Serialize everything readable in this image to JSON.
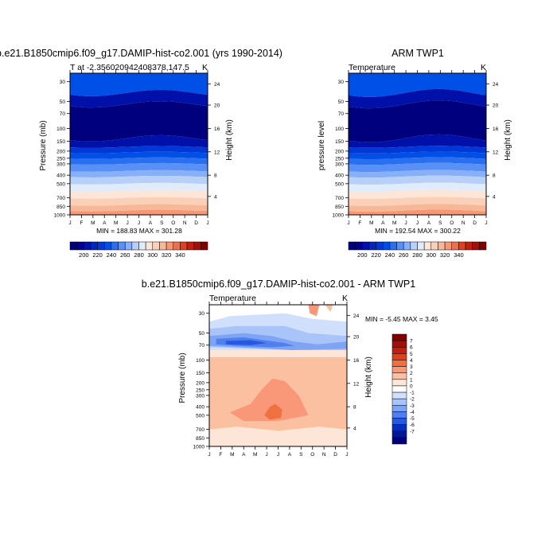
{
  "panels": [
    {
      "title": "b.e21.B1850cmip6.f09_g17.DAMIP-hist-co2.001 (yrs 1990-2014)",
      "left_label": "T at -2.356020942408378,147.5",
      "right_label": "K",
      "ylabel_left": "Pressure (mb)",
      "ylabel_right": "Height (km)",
      "stats": "MIN = 188.83 MAX = 301.28"
    },
    {
      "title": "ARM TWP1",
      "left_label": "Temperature",
      "right_label": "K",
      "ylabel_left": "pressure level",
      "ylabel_right": "Height (km)",
      "stats": "MIN = 192.54 MAX = 300.22"
    },
    {
      "title": "b.e21.B1850cmip6.f09_g17.DAMIP-hist-co2.001 - ARM TWP1",
      "left_label": "Temperature",
      "right_label": "K",
      "ylabel_left": "Pressure (mb)",
      "ylabel_right": "Height (km)",
      "stats": "MIN =  -5.45 MAX =   3.45"
    }
  ],
  "chart_data": [
    {
      "type": "heatmap",
      "title": "b.e21.B1850cmip6.f09_g17.DAMIP-hist-co2.001 (yrs 1990-2014)",
      "x_ticks": [
        "J",
        "F",
        "M",
        "A",
        "M",
        "J",
        "J",
        "A",
        "S",
        "O",
        "N",
        "D",
        "J"
      ],
      "y_ticks_pressure": [
        "30",
        "50",
        "70",
        "100",
        "150",
        "200",
        "250",
        "300",
        "400",
        "500",
        "700",
        "850",
        "1000"
      ],
      "y_ticks_height": [
        "24",
        "20",
        "16",
        "12",
        "8",
        "4"
      ],
      "colorbar_labels": [
        "200",
        "220",
        "240",
        "260",
        "280",
        "300",
        "320",
        "340"
      ],
      "min": 188.83,
      "max": 301.28
    },
    {
      "type": "heatmap",
      "title": "ARM TWP1",
      "x_ticks": [
        "J",
        "F",
        "M",
        "A",
        "M",
        "J",
        "J",
        "A",
        "S",
        "O",
        "N",
        "D",
        "J"
      ],
      "y_ticks_pressure": [
        "30",
        "50",
        "70",
        "100",
        "150",
        "200",
        "250",
        "300",
        "400",
        "500",
        "700",
        "850",
        "1000"
      ],
      "y_ticks_height": [
        "24",
        "20",
        "16",
        "12",
        "8",
        "4"
      ],
      "colorbar_labels": [
        "200",
        "220",
        "240",
        "260",
        "280",
        "300",
        "320",
        "340"
      ],
      "min": 192.54,
      "max": 300.22
    },
    {
      "type": "heatmap",
      "title": "b.e21.B1850cmip6.f09_g17.DAMIP-hist-co2.001 - ARM TWP1",
      "x_ticks": [
        "J",
        "F",
        "M",
        "A",
        "M",
        "J",
        "J",
        "A",
        "S",
        "O",
        "N",
        "D",
        "J"
      ],
      "y_ticks_pressure": [
        "30",
        "50",
        "70",
        "100",
        "150",
        "200",
        "250",
        "300",
        "400",
        "500",
        "700",
        "850",
        "1000"
      ],
      "y_ticks_height": [
        "24",
        "20",
        "16",
        "12",
        "8",
        "4"
      ],
      "colorbar_labels": [
        "7",
        "6",
        "5",
        "4",
        "3",
        "2",
        "1",
        "0",
        "-1",
        "-2",
        "-3",
        "-4",
        "-5",
        "-6",
        "-7"
      ],
      "min": -5.45,
      "max": 3.45
    }
  ],
  "colors": {
    "abs_scale": [
      "#00007f",
      "#00008f",
      "#0010a8",
      "#0028c0",
      "#0038d8",
      "#0050e8",
      "#2870f0",
      "#5890f8",
      "#88b0f8",
      "#b8d0f8",
      "#e0ecfc",
      "#fde6d8",
      "#fbd0b8",
      "#f8b898",
      "#f49878",
      "#ec7050",
      "#e04020",
      "#c02010",
      "#a01008",
      "#800000"
    ],
    "diff_scale": [
      "#800000",
      "#a01008",
      "#c02010",
      "#e04020",
      "#f07040",
      "#f89878",
      "#fbc0a0",
      "#fde6d8",
      "#ffffff",
      "#d0e0fc",
      "#a8c4f8",
      "#80a4f4",
      "#5080f0",
      "#2858e0",
      "#0030c0",
      "#001898",
      "#00007f"
    ]
  }
}
